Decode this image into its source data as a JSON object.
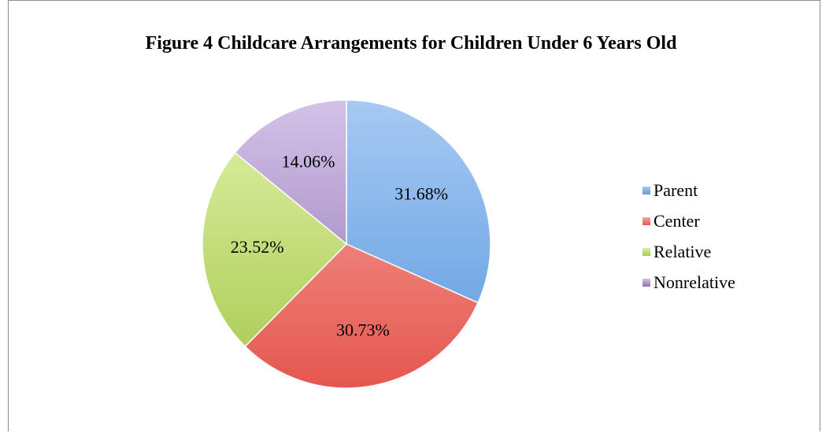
{
  "chart_data": {
    "type": "pie",
    "title": "Figure 4 Childcare Arrangements for Children Under 6 Years Old",
    "slices": [
      {
        "name": "Parent",
        "value": 31.68,
        "label": "31.68%",
        "color": "#5c9be0",
        "color_light": "#a7c9f3"
      },
      {
        "name": "Center",
        "value": 30.73,
        "label": "30.73%",
        "color": "#e5574f",
        "color_light": "#f5a9a2"
      },
      {
        "name": "Relative",
        "value": 23.52,
        "label": "23.52%",
        "color": "#a8c94f",
        "color_light": "#dff2a8"
      },
      {
        "name": "Nonrelative",
        "value": 14.06,
        "label": "14.06%",
        "color": "#8f72b3",
        "color_light": "#d3c2e8"
      }
    ],
    "legend_position": "right"
  }
}
